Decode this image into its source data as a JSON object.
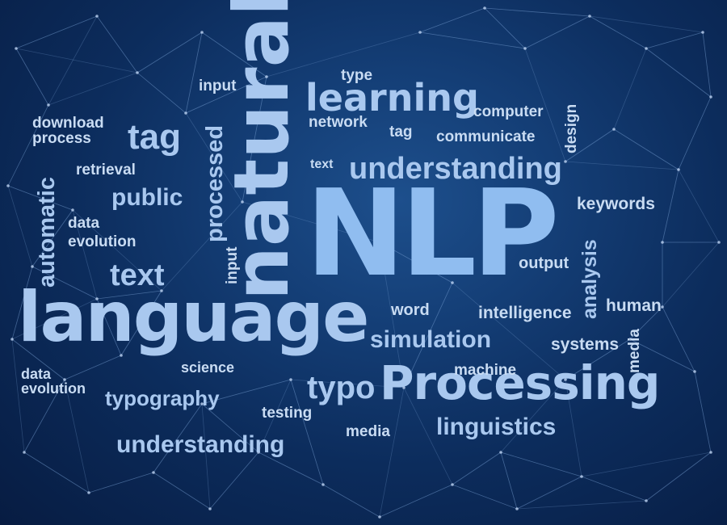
{
  "words": {
    "nlp": "NLP",
    "language": "language",
    "natural": "natural",
    "processing": "Processing",
    "learning": "learning",
    "understanding_top": "understanding",
    "understanding_bottom": "understanding",
    "tag_big": "tag",
    "tag_small": "tag",
    "text_big": "text",
    "text_small": "text",
    "public": "public",
    "processed": "processed",
    "automatic": "automatic",
    "input_top": "input",
    "input_vertical": "input",
    "type": "type",
    "network": "network",
    "computer": "computer",
    "communicate": "communicate",
    "design": "design",
    "keywords": "keywords",
    "analysis": "analysis",
    "output": "output",
    "human": "human",
    "intelligence": "intelligence",
    "word": "word",
    "simulation": "simulation",
    "systems": "systems",
    "media_vertical": "media",
    "media_bottom": "media",
    "machine": "machine",
    "typo": "typo",
    "linguistics": "linguistics",
    "testing": "testing",
    "science": "science",
    "typography": "typography",
    "download": "download",
    "process": "process",
    "retrieval": "retrieval",
    "data_top": "data",
    "evolution_top": "evolution",
    "data_bottom": "data",
    "evolution_bottom": "evolution"
  },
  "colors": {
    "background_center": "#1d4f8c",
    "background_edge": "#071c42",
    "text_pale": "#c9dcf3",
    "text_light_blue": "#a9c8ef",
    "text_bright_blue": "#90bdf0",
    "network_lines": "#7fa4d6"
  }
}
